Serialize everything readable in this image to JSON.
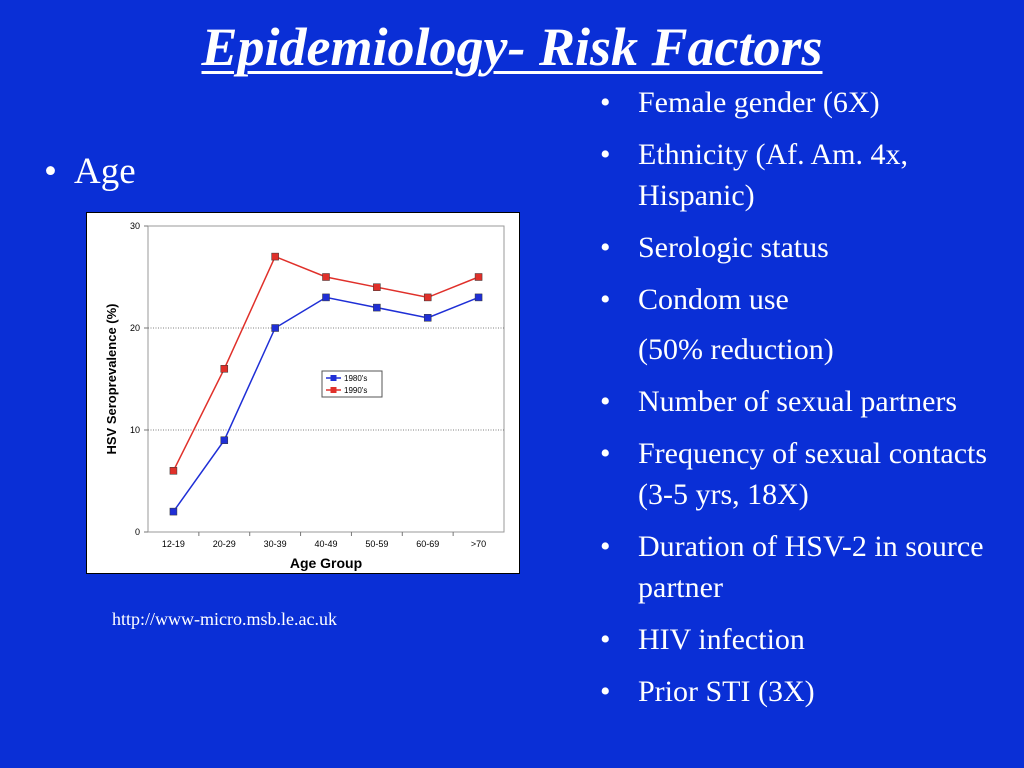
{
  "title": "Epidemiology- Risk Factors",
  "left": {
    "bullet_char": "•",
    "bullet": "Age"
  },
  "source": "http://www-micro.msb.le.ac.uk",
  "risk_factors": [
    {
      "bullet": "•",
      "text": "Female gender (6X)"
    },
    {
      "bullet": "•",
      "text": "Ethnicity (Af. Am. 4x, Hispanic)"
    },
    {
      "bullet": "•",
      "text": "Serologic status"
    },
    {
      "bullet": "•",
      "text": "Condom use"
    },
    {
      "bullet": "",
      "text": "(50% reduction)"
    },
    {
      "bullet": "•",
      "text": "Number of sexual partners"
    },
    {
      "bullet": "•",
      "text": "Frequency of sexual contacts (3-5 yrs, 18X)"
    },
    {
      "bullet": "•",
      "text": "Duration of HSV-2 in source partner"
    },
    {
      "bullet": "•",
      "text": "HIV infection"
    },
    {
      "bullet": "•",
      "text": "Prior STI (3X)"
    }
  ],
  "colors": {
    "background": "#0a2fd6",
    "series_1980s": "#1f2fd6",
    "series_1990s": "#e0302a"
  },
  "chart_data": {
    "type": "line",
    "title": "",
    "xlabel": "Age Group",
    "ylabel": "HSV Seroprevalence (%)",
    "categories": [
      "12-19",
      "20-29",
      "30-39",
      "40-49",
      "50-59",
      "60-69",
      ">70"
    ],
    "ylim": [
      0,
      30
    ],
    "yticks": [
      0,
      10,
      20,
      30
    ],
    "grid": "horizontal dashed",
    "legend": "center-right",
    "series": [
      {
        "name": "1980's",
        "color": "#1f2fd6",
        "values": [
          2,
          9,
          20,
          23,
          22,
          21,
          23
        ]
      },
      {
        "name": "1990's",
        "color": "#e0302a",
        "values": [
          6,
          16,
          27,
          25,
          24,
          23,
          25
        ]
      }
    ]
  }
}
